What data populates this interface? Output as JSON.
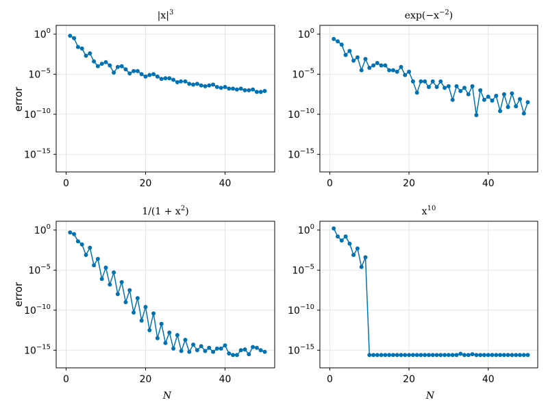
{
  "figure": {
    "ylabel": "error",
    "xlabel": "N"
  },
  "chart_data": [
    {
      "type": "line",
      "title": "|x|³",
      "title_parts": {
        "base": "|x|",
        "sup": "3"
      },
      "xlabel": "",
      "ylabel": "error",
      "xlim": [
        -2.5,
        52.5
      ],
      "ylim_log10": [
        -17.2,
        1.1
      ],
      "xticks": [
        0,
        20,
        40
      ],
      "yticks": [
        {
          "base": "10",
          "exp": "0",
          "value": 0
        },
        {
          "base": "10",
          "exp": "−5",
          "value": -5
        },
        {
          "base": "10",
          "exp": "−10",
          "value": -10
        },
        {
          "base": "10",
          "exp": "−15",
          "value": -15
        }
      ],
      "series": [
        {
          "name": "|x|^3",
          "color": "#0072b2",
          "x": [
            1,
            2,
            3,
            4,
            5,
            6,
            7,
            8,
            9,
            10,
            11,
            12,
            13,
            14,
            15,
            16,
            17,
            18,
            19,
            20,
            21,
            22,
            23,
            24,
            25,
            26,
            27,
            28,
            28.9,
            30,
            31,
            32,
            33,
            34,
            35,
            36,
            37,
            38,
            39,
            40,
            41,
            42,
            43,
            44,
            45,
            46,
            47,
            48,
            49,
            50
          ],
          "log10_values": [
            -0.2,
            -0.5,
            -1.6,
            -1.8,
            -2.7,
            -2.4,
            -3.4,
            -4.0,
            -3.7,
            -3.5,
            -3.9,
            -4.8,
            -4.1,
            -4.0,
            -4.4,
            -4.9,
            -4.6,
            -4.6,
            -5.0,
            -5.3,
            -5.1,
            -5.0,
            -5.3,
            -5.6,
            -5.5,
            -5.5,
            -5.7,
            -6.0,
            -5.9,
            -5.9,
            -6.2,
            -6.3,
            -6.2,
            -6.4,
            -6.5,
            -6.4,
            -6.3,
            -6.6,
            -6.7,
            -6.6,
            -6.8,
            -6.8,
            -6.9,
            -6.8,
            -7.0,
            -7.0,
            -6.9,
            -7.2,
            -7.2,
            -7.1
          ]
        }
      ]
    },
    {
      "type": "line",
      "title": "exp(−x⁻²)",
      "title_parts": {
        "base": "exp(−x",
        "sup": "−2",
        "tail": ")"
      },
      "xlabel": "",
      "ylabel": "",
      "xlim": [
        -2.5,
        52.5
      ],
      "ylim_log10": [
        -17.2,
        1.1
      ],
      "xticks": [
        0,
        20,
        40
      ],
      "yticks": [
        {
          "base": "10",
          "exp": "0",
          "value": 0
        },
        {
          "base": "10",
          "exp": "−5",
          "value": -5
        },
        {
          "base": "10",
          "exp": "−10",
          "value": -10
        },
        {
          "base": "10",
          "exp": "−15",
          "value": -15
        }
      ],
      "series": [
        {
          "name": "exp(-x^-2)",
          "color": "#0072b2",
          "x": [
            1,
            2,
            3,
            4,
            5,
            6,
            7,
            8,
            9,
            10,
            11,
            12,
            13,
            14,
            15,
            16,
            17,
            18,
            19,
            20,
            21,
            22,
            23,
            24,
            25,
            26,
            27,
            28,
            29,
            30,
            31,
            32,
            33,
            34,
            35,
            36,
            37,
            38,
            39,
            40,
            41,
            42,
            43,
            44,
            45,
            46,
            47,
            48,
            49,
            50
          ],
          "log10_values": [
            -0.6,
            -0.9,
            -1.3,
            -2.6,
            -2.1,
            -3.3,
            -2.9,
            -4.5,
            -3.1,
            -4.2,
            -3.9,
            -3.6,
            -3.9,
            -3.9,
            -4.5,
            -4.5,
            -4.7,
            -4.1,
            -5.1,
            -4.7,
            -5.9,
            -7.3,
            -5.9,
            -5.9,
            -6.6,
            -5.9,
            -6.6,
            -5.9,
            -6.7,
            -6.5,
            -8.2,
            -6.5,
            -7.1,
            -6.7,
            -7.5,
            -6.5,
            -10.1,
            -7.0,
            -8.2,
            -7.8,
            -8.3,
            -7.7,
            -9.6,
            -7.5,
            -9.1,
            -7.4,
            -9.0,
            -8.1,
            -9.9,
            -8.5
          ]
        }
      ]
    },
    {
      "type": "line",
      "title": "1/(1 + x²)",
      "title_parts": {
        "base": "1/(1 + x",
        "sup": "2",
        "tail": ")"
      },
      "xlabel": "N",
      "ylabel": "error",
      "xlim": [
        -2.5,
        52.5
      ],
      "ylim_log10": [
        -17.2,
        1.1
      ],
      "xticks": [
        0,
        20,
        40
      ],
      "yticks": [
        {
          "base": "10",
          "exp": "0",
          "value": 0
        },
        {
          "base": "10",
          "exp": "−5",
          "value": -5
        },
        {
          "base": "10",
          "exp": "−10",
          "value": -10
        },
        {
          "base": "10",
          "exp": "−15",
          "value": -15
        }
      ],
      "series": [
        {
          "name": "1/(1+x^2)",
          "color": "#0072b2",
          "x": [
            1,
            2,
            3,
            4,
            5,
            6,
            7,
            8,
            9,
            10,
            11,
            12,
            13,
            14,
            15,
            16,
            17,
            18,
            19,
            20,
            21,
            22,
            23,
            24,
            25,
            26,
            27,
            28,
            29,
            30,
            31,
            32,
            33,
            34,
            35,
            36,
            37,
            38,
            39,
            40,
            41,
            42,
            43,
            44,
            45,
            46,
            47,
            48,
            49,
            50
          ],
          "log10_values": [
            -0.3,
            -0.5,
            -1.4,
            -1.8,
            -3.1,
            -2.2,
            -4.4,
            -3.6,
            -6.1,
            -4.7,
            -6.8,
            -5.3,
            -8.0,
            -6.5,
            -9.0,
            -7.5,
            -10.3,
            -8.5,
            -11.3,
            -9.6,
            -12.5,
            -10.4,
            -13.5,
            -11.7,
            -14.1,
            -12.8,
            -14.8,
            -13.1,
            -15.1,
            -13.7,
            -15.2,
            -14.3,
            -15.0,
            -14.5,
            -15.1,
            -14.7,
            -15.2,
            -14.8,
            -14.8,
            -14.4,
            -15.4,
            -15.6,
            -15.6,
            -15.0,
            -14.9,
            -15.5,
            -14.6,
            -14.7,
            -15.0,
            -15.2
          ]
        }
      ]
    },
    {
      "type": "line",
      "title": "x¹⁰",
      "title_parts": {
        "base": "x",
        "sup": "10"
      },
      "xlabel": "N",
      "ylabel": "",
      "xlim": [
        -2.5,
        52.5
      ],
      "ylim_log10": [
        -17.2,
        1.1
      ],
      "xticks": [
        0,
        20,
        40
      ],
      "yticks": [
        {
          "base": "10",
          "exp": "0",
          "value": 0
        },
        {
          "base": "10",
          "exp": "−5",
          "value": -5
        },
        {
          "base": "10",
          "exp": "−10",
          "value": -10
        },
        {
          "base": "10",
          "exp": "−15",
          "value": -15
        }
      ],
      "series": [
        {
          "name": "x^10",
          "color": "#0072b2",
          "x": [
            1,
            2,
            3,
            4,
            5,
            6,
            7,
            8,
            9,
            10,
            11,
            12,
            13,
            14,
            15,
            16,
            17,
            18,
            19,
            20,
            21,
            22,
            23,
            24,
            25,
            26,
            27,
            28,
            29,
            30,
            31,
            32,
            33,
            34,
            35,
            36,
            37,
            38,
            39,
            40,
            41,
            42,
            43,
            44,
            45,
            46,
            47,
            48,
            49,
            50
          ],
          "log10_values": [
            0.2,
            -0.8,
            -1.3,
            -0.8,
            -1.7,
            -3.1,
            -2.3,
            -4.6,
            -3.4,
            -15.6,
            -15.6,
            -15.6,
            -15.6,
            -15.6,
            -15.6,
            -15.6,
            -15.6,
            -15.6,
            -15.6,
            -15.6,
            -15.6,
            -15.6,
            -15.6,
            -15.6,
            -15.6,
            -15.6,
            -15.6,
            -15.6,
            -15.6,
            -15.6,
            -15.6,
            -15.6,
            -15.45,
            -15.6,
            -15.6,
            -15.5,
            -15.6,
            -15.6,
            -15.6,
            -15.6,
            -15.6,
            -15.6,
            -15.6,
            -15.6,
            -15.6,
            -15.6,
            -15.6,
            -15.6,
            -15.6,
            -15.6
          ]
        }
      ]
    }
  ]
}
